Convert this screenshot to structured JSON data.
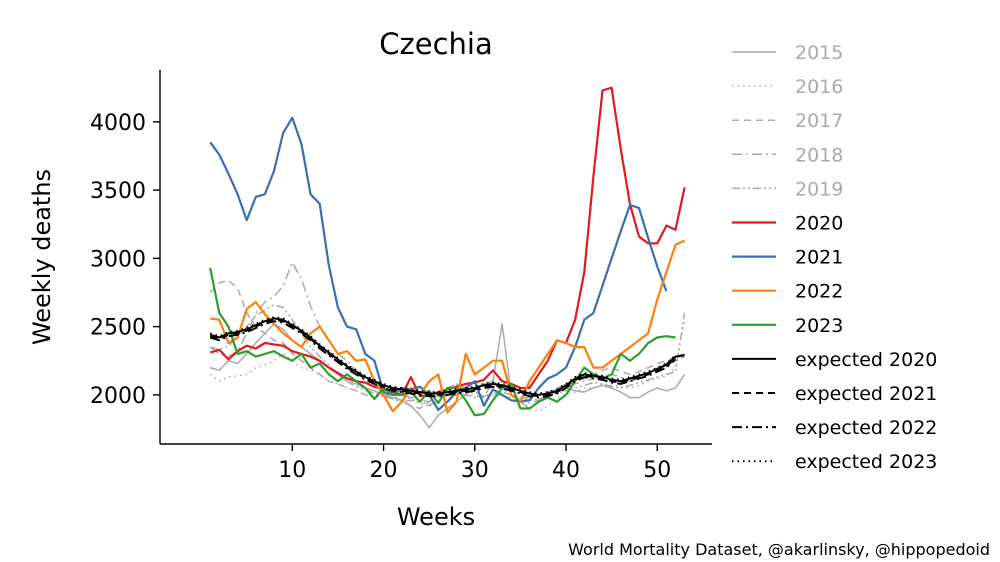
{
  "chart_data": {
    "type": "line",
    "title": "Czechia",
    "xlabel": "Weeks",
    "ylabel": "Weekly deaths",
    "xlim": [
      -4.5,
      56
    ],
    "ylim": [
      1640,
      4380
    ],
    "xticks": [
      10,
      20,
      30,
      40,
      50
    ],
    "yticks": [
      2000,
      2500,
      3000,
      3500,
      4000
    ],
    "source": "World Mortality Dataset, @akarlinsky, @hippopedoid",
    "legend_position": "right",
    "series": [
      {
        "name": "2015",
        "color": "#aaaaaa",
        "dash": "solid",
        "width": 1.5,
        "values": [
          2200,
          2180,
          2250,
          2230,
          2300,
          2380,
          2450,
          2520,
          2480,
          2400,
          2350,
          2300,
          2250,
          2200,
          2150,
          2100,
          2080,
          2050,
          2030,
          2000,
          1980,
          1960,
          1920,
          1850,
          1760,
          1850,
          1900,
          1950,
          2000,
          2050,
          2080,
          2100,
          2520,
          2000,
          1950,
          1900,
          1950,
          2000,
          2020,
          2050,
          2030,
          2020,
          2050,
          2070,
          2050,
          2020,
          1980,
          1980,
          2020,
          2050,
          2030,
          2050,
          2150
        ]
      },
      {
        "name": "2016",
        "color": "#aaaaaa",
        "dash": "dotted",
        "width": 1.5,
        "values": [
          2150,
          2100,
          2130,
          2140,
          2150,
          2200,
          2220,
          2250,
          2300,
          2250,
          2200,
          2180,
          2150,
          2100,
          2080,
          2050,
          2030,
          2000,
          1980,
          2000,
          2020,
          2000,
          1970,
          1950,
          1930,
          1950,
          1970,
          2000,
          2010,
          1990,
          1980,
          2000,
          2050,
          2050,
          1950,
          1900,
          1880,
          1920,
          1980,
          2000,
          2020,
          2050,
          2050,
          2080,
          2070,
          2060,
          2050,
          2070,
          2100,
          2120,
          2140,
          2200,
          2550
        ]
      },
      {
        "name": "2017",
        "color": "#aaaaaa",
        "dash": "dashed",
        "width": 1.5,
        "values": [
          2750,
          2820,
          2840,
          2780,
          2600,
          2500,
          2450,
          2400,
          2380,
          2300,
          2250,
          2200,
          2150,
          2100,
          2080,
          2050,
          2030,
          2000,
          1980,
          2000,
          2000,
          1950,
          1920,
          1900,
          1950,
          2000,
          2050,
          2080,
          2050,
          2000,
          1980,
          2100,
          2050,
          2000,
          1980,
          1980,
          2000,
          2020,
          2050,
          2080,
          2100,
          2120,
          2150,
          2180,
          2200,
          2170,
          2150,
          2170,
          2200,
          2230,
          2250,
          2280,
          2300
        ]
      },
      {
        "name": "2018",
        "color": "#aaaaaa",
        "dash": "dashdot",
        "width": 1.5,
        "values": [
          2350,
          2300,
          2280,
          2320,
          2450,
          2600,
          2680,
          2720,
          2800,
          2970,
          2850,
          2650,
          2500,
          2400,
          2300,
          2250,
          2180,
          2120,
          2080,
          2050,
          2020,
          2000,
          1980,
          1960,
          1950,
          2000,
          2050,
          2080,
          2050,
          2020,
          1990,
          2000,
          2000,
          1980,
          1960,
          1940,
          1960,
          2000,
          2040,
          2080,
          2080,
          2100,
          2120,
          2140,
          2150,
          2130,
          2100,
          2120,
          2150,
          2200,
          2230,
          2250,
          2280
        ]
      },
      {
        "name": "2019",
        "color": "#aaaaaa",
        "dash": "dashdotdot",
        "width": 1.5,
        "values": [
          2350,
          2330,
          2360,
          2420,
          2500,
          2580,
          2620,
          2660,
          2640,
          2550,
          2450,
          2350,
          2280,
          2220,
          2150,
          2100,
          2060,
          2040,
          2010,
          1990,
          1970,
          1950,
          1960,
          1940,
          1920,
          1960,
          2000,
          2030,
          2000,
          1980,
          1990,
          2010,
          2020,
          2000,
          1980,
          1960,
          1970,
          1990,
          2010,
          2030,
          2050,
          2070,
          2090,
          2080,
          2060,
          2050,
          2070,
          2090,
          2110,
          2130,
          2150,
          2170,
          2600
        ]
      },
      {
        "name": "2020",
        "color": "#e31a1c",
        "dash": "solid",
        "width": 2.2,
        "values": [
          2310,
          2330,
          2260,
          2320,
          2360,
          2340,
          2380,
          2370,
          2360,
          2320,
          2300,
          2280,
          2250,
          2200,
          2160,
          2120,
          2100,
          2090,
          2060,
          2040,
          2020,
          2000,
          2130,
          1990,
          2000,
          2020,
          2040,
          2060,
          2080,
          2090,
          2110,
          2180,
          2100,
          2080,
          2050,
          2050,
          2150,
          2250,
          2400,
          2380,
          2550,
          2900,
          3600,
          4230,
          4250,
          3800,
          3400,
          3160,
          3110,
          3110,
          3240,
          3210,
          3520
        ]
      },
      {
        "name": "2021",
        "color": "#3a6eb5",
        "dash": "solid",
        "width": 2.2,
        "values": [
          3850,
          3760,
          3620,
          3470,
          3280,
          3450,
          3470,
          3640,
          3920,
          4030,
          3840,
          3470,
          3400,
          2950,
          2640,
          2500,
          2480,
          2300,
          2250,
          2020,
          2000,
          2050,
          2040,
          2060,
          2000,
          1890,
          1950,
          2020,
          2050,
          2100,
          1920,
          2040,
          2000,
          1960,
          1950,
          1960,
          2050,
          2120,
          2150,
          2200,
          2350,
          2550,
          2600,
          2800,
          3000,
          3200,
          3390,
          3370,
          3150,
          2940,
          2760
        ]
      },
      {
        "name": "2022",
        "color": "#ff7f0e",
        "dash": "solid",
        "width": 2.2,
        "values": [
          2560,
          2550,
          2380,
          2420,
          2630,
          2680,
          2590,
          2520,
          2450,
          2400,
          2350,
          2450,
          2500,
          2400,
          2300,
          2320,
          2250,
          2260,
          2100,
          2000,
          1880,
          1950,
          2050,
          2000,
          2100,
          2150,
          1870,
          1950,
          2300,
          2150,
          2200,
          2250,
          2250,
          2000,
          1950,
          2100,
          2200,
          2300,
          2400,
          2380,
          2350,
          2350,
          2200,
          2200,
          2250,
          2300,
          2350,
          2400,
          2450,
          2700,
          2900,
          3100,
          3130
        ]
      },
      {
        "name": "2023",
        "color": "#2ca02c",
        "dash": "solid",
        "width": 2.2,
        "values": [
          2930,
          2600,
          2500,
          2300,
          2320,
          2280,
          2300,
          2320,
          2280,
          2250,
          2300,
          2200,
          2230,
          2150,
          2100,
          2150,
          2100,
          2050,
          1970,
          2050,
          2000,
          2000,
          2020,
          1950,
          2030,
          1940,
          2050,
          2050,
          1960,
          1850,
          1860,
          1960,
          2050,
          2080,
          1900,
          1900,
          1950,
          1980,
          1950,
          2000,
          2100,
          2200,
          2150,
          2120,
          2150,
          2300,
          2250,
          2300,
          2380,
          2420,
          2430,
          2420
        ]
      },
      {
        "name": "expected 2020",
        "color": "#000000",
        "dash": "solid",
        "width": 2,
        "values": [
          2440,
          2420,
          2450,
          2460,
          2480,
          2510,
          2540,
          2560,
          2550,
          2510,
          2470,
          2420,
          2360,
          2310,
          2260,
          2210,
          2170,
          2130,
          2100,
          2070,
          2050,
          2040,
          2030,
          2020,
          2010,
          2010,
          2020,
          2030,
          2040,
          2050,
          2070,
          2080,
          2070,
          2050,
          2030,
          2010,
          2000,
          2010,
          2030,
          2070,
          2120,
          2150,
          2140,
          2130,
          2110,
          2100,
          2120,
          2140,
          2160,
          2190,
          2220,
          2280,
          2290
        ]
      },
      {
        "name": "expected 2021",
        "color": "#000000",
        "dash": "dashed",
        "width": 2,
        "values": [
          2430,
          2410,
          2440,
          2450,
          2470,
          2500,
          2530,
          2550,
          2540,
          2500,
          2460,
          2410,
          2350,
          2300,
          2250,
          2200,
          2160,
          2120,
          2090,
          2060,
          2040,
          2030,
          2020,
          2010,
          2000,
          2000,
          2010,
          2020,
          2030,
          2040,
          2060,
          2070,
          2060,
          2040,
          2020,
          2000,
          1990,
          2000,
          2020,
          2060,
          2110,
          2140,
          2130,
          2120,
          2100,
          2090,
          2110,
          2130,
          2150,
          2180,
          2210,
          2270
        ]
      },
      {
        "name": "expected 2022",
        "color": "#000000",
        "dash": "dashdot",
        "width": 2,
        "values": [
          2420,
          2400,
          2430,
          2440,
          2460,
          2490,
          2520,
          2540,
          2530,
          2490,
          2450,
          2400,
          2340,
          2290,
          2240,
          2190,
          2150,
          2110,
          2080,
          2050,
          2030,
          2020,
          2010,
          2000,
          1990,
          1990,
          2000,
          2010,
          2020,
          2030,
          2050,
          2060,
          2050,
          2030,
          2010,
          1990,
          1980,
          1990,
          2010,
          2050,
          2100,
          2130,
          2120,
          2110,
          2090,
          2080,
          2100,
          2120,
          2140,
          2170,
          2200,
          2260
        ]
      },
      {
        "name": "expected 2023",
        "color": "#000000",
        "dash": "dotted",
        "width": 2,
        "values": [
          2450,
          2430,
          2460,
          2470,
          2490,
          2520,
          2550,
          2570,
          2560,
          2520,
          2480,
          2430,
          2370,
          2320,
          2270,
          2220,
          2180,
          2140,
          2110,
          2080,
          2060,
          2050,
          2040,
          2030,
          2020,
          2020,
          2030,
          2040,
          2050,
          2060,
          2080,
          2090,
          2080,
          2060,
          2040,
          2020,
          2010,
          2020,
          2040,
          2080,
          2130,
          2160,
          2150,
          2140,
          2120,
          2110,
          2130,
          2150,
          2170,
          2200,
          2230,
          2290
        ]
      }
    ]
  }
}
